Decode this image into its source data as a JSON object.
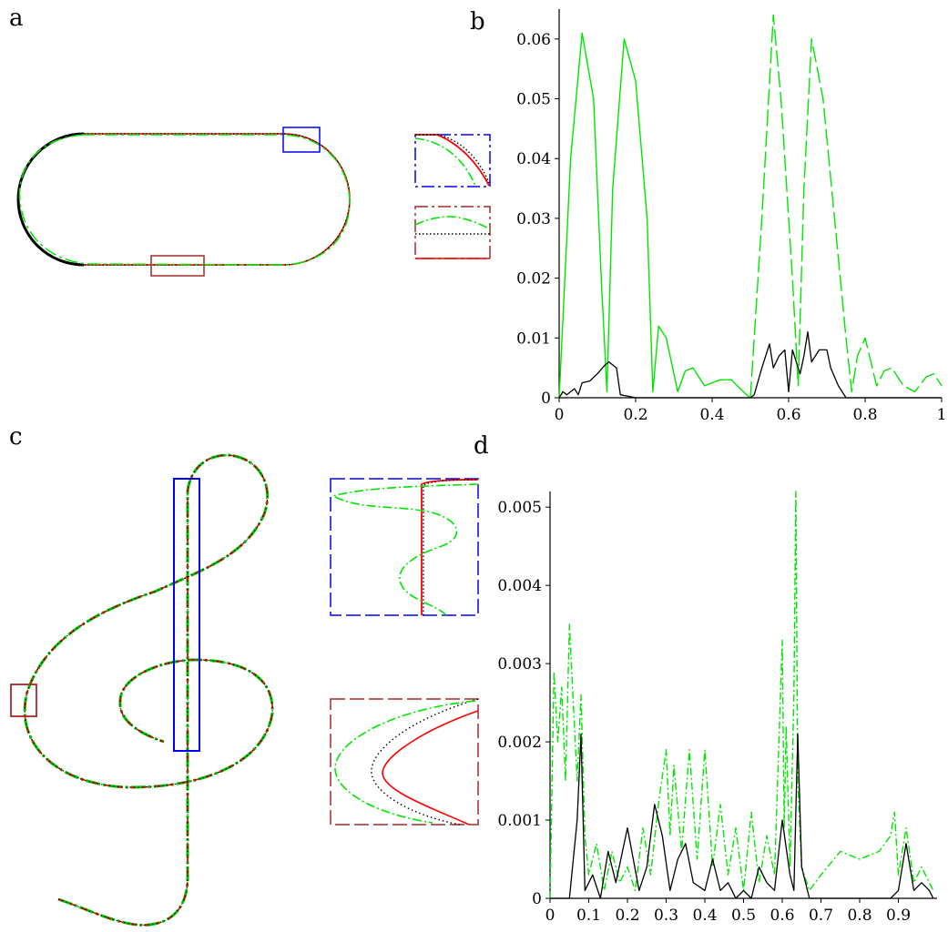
{
  "panels": {
    "a": {
      "label": "a"
    },
    "b": {
      "label": "b"
    },
    "c": {
      "label": "c"
    },
    "d": {
      "label": "d"
    }
  },
  "colors": {
    "exact": "#000000",
    "red": "#ff0000",
    "green": "#00e600",
    "blue": "#0000ff",
    "brown": "#a52a2a"
  },
  "chart_data": [
    {
      "id": "b",
      "type": "line",
      "title": "",
      "xlabel": "",
      "ylabel": "",
      "xlim": [
        0,
        1
      ],
      "ylim": [
        0,
        0.065
      ],
      "xticks": [
        "0",
        "0.2",
        "0.4",
        "0.6",
        "0.8",
        "1"
      ],
      "xtick_values": [
        0,
        0.2,
        0.4,
        0.6,
        0.8,
        1
      ],
      "yticks": [
        "0",
        "0.01",
        "0.02",
        "0.03",
        "0.04",
        "0.05",
        "0.06"
      ],
      "ytick_values": [
        0,
        0.01,
        0.02,
        0.03,
        0.04,
        0.05,
        0.06
      ],
      "series": [
        {
          "style": "green-solid",
          "color": "#00e600",
          "x": [
            0,
            0.03,
            0.06,
            0.09,
            0.11,
            0.125,
            0.14,
            0.17,
            0.2,
            0.23,
            0.245,
            0.26,
            0.28,
            0.31,
            0.33,
            0.35,
            0.38,
            0.42,
            0.45,
            0.49,
            0.5
          ],
          "y": [
            0.0,
            0.04,
            0.061,
            0.05,
            0.02,
            0.001,
            0.035,
            0.06,
            0.053,
            0.03,
            0.001,
            0.012,
            0.01,
            0.001,
            0.0045,
            0.005,
            0.002,
            0.003,
            0.003,
            0.0005,
            0.0
          ]
        },
        {
          "style": "green-dash",
          "color": "#00e600",
          "x": [
            0.5,
            0.53,
            0.56,
            0.58,
            0.61,
            0.625,
            0.64,
            0.66,
            0.69,
            0.72,
            0.75,
            0.765,
            0.78,
            0.8,
            0.83,
            0.85,
            0.87,
            0.9,
            0.93,
            0.96,
            0.98,
            1.0
          ],
          "y": [
            0.0,
            0.03,
            0.064,
            0.05,
            0.02,
            0.002,
            0.035,
            0.06,
            0.05,
            0.03,
            0.01,
            0.001,
            0.007,
            0.01,
            0.002,
            0.0045,
            0.005,
            0.002,
            0.001,
            0.0035,
            0.004,
            0.002
          ]
        },
        {
          "style": "black-solid",
          "color": "#000000",
          "x": [
            0,
            0.01,
            0.02,
            0.03,
            0.04,
            0.05,
            0.06,
            0.08,
            0.1,
            0.12,
            0.13,
            0.15,
            0.16,
            0.2,
            0.4,
            0.5,
            0.51,
            0.53,
            0.55,
            0.56,
            0.575,
            0.59,
            0.6,
            0.61,
            0.63,
            0.64,
            0.65,
            0.66,
            0.67,
            0.68,
            0.7,
            0.71,
            0.73,
            0.75,
            1.0
          ],
          "y": [
            0,
            0.001,
            0.0005,
            0.001,
            0.0015,
            0.0005,
            0.0025,
            0.0028,
            0.004,
            0.0055,
            0.006,
            0.005,
            0.0005,
            0.0,
            0.0,
            0.0,
            0.0005,
            0.005,
            0.009,
            0.005,
            0.007,
            0.008,
            0.001,
            0.008,
            0.004,
            0.007,
            0.011,
            0.006,
            0.007,
            0.008,
            0.008,
            0.005,
            0.002,
            0.0,
            0.0
          ]
        }
      ]
    },
    {
      "id": "d",
      "type": "line",
      "title": "",
      "xlabel": "",
      "ylabel": "",
      "xlim": [
        0,
        1
      ],
      "ylim": [
        0,
        0.0052
      ],
      "xticks": [
        "0",
        "0.1",
        "0.2",
        "0.3",
        "0.4",
        "0.5",
        "0.6",
        "0.7",
        "0.8",
        "0.9"
      ],
      "xtick_values": [
        0,
        0.1,
        0.2,
        0.3,
        0.4,
        0.5,
        0.6,
        0.7,
        0.8,
        0.9
      ],
      "yticks": [
        "0",
        "0.001",
        "0.002",
        "0.003",
        "0.004",
        "0.005"
      ],
      "ytick_values": [
        0,
        0.001,
        0.002,
        0.003,
        0.004,
        0.005
      ],
      "series": [
        {
          "style": "green-dashdot",
          "color": "#00e600",
          "x": [
            0,
            0.01,
            0.02,
            0.03,
            0.04,
            0.05,
            0.06,
            0.07,
            0.08,
            0.09,
            0.1,
            0.12,
            0.14,
            0.16,
            0.18,
            0.2,
            0.22,
            0.24,
            0.26,
            0.28,
            0.3,
            0.31,
            0.32,
            0.34,
            0.36,
            0.38,
            0.4,
            0.42,
            0.44,
            0.46,
            0.48,
            0.5,
            0.52,
            0.54,
            0.56,
            0.58,
            0.6,
            0.605,
            0.61,
            0.62,
            0.63,
            0.635,
            0.64,
            0.65,
            0.67,
            0.7,
            0.75,
            0.8,
            0.85,
            0.88,
            0.89,
            0.9,
            0.92,
            0.94,
            0.96,
            0.98,
            0.99
          ],
          "y": [
            0,
            0.0029,
            0.002,
            0.0027,
            0.0015,
            0.0035,
            0.0025,
            0.0015,
            0.0026,
            0.0008,
            0.0003,
            0.0007,
            0.0001,
            0.0006,
            0.0002,
            0.0004,
            0.0001,
            0.0009,
            0.0003,
            0.0012,
            0.0019,
            0.0008,
            0.0017,
            0.0006,
            0.0019,
            0.0005,
            0.0019,
            0.0004,
            0.0012,
            0.0003,
            0.0009,
            0.0001,
            0.0011,
            0.0002,
            0.0008,
            0.0003,
            0.0033,
            0.0009,
            0.0022,
            0.0004,
            0.0026,
            0.0052,
            0.0015,
            0.0004,
            0.0001,
            0.0003,
            0.0006,
            0.0005,
            0.0006,
            0.0008,
            0.0011,
            0.0003,
            0.0009,
            0.0002,
            0.0004,
            0.0002,
            0.0001
          ]
        },
        {
          "style": "black-solid",
          "color": "#000000",
          "x": [
            0,
            0.05,
            0.07,
            0.08,
            0.09,
            0.11,
            0.13,
            0.15,
            0.17,
            0.2,
            0.23,
            0.25,
            0.27,
            0.29,
            0.31,
            0.33,
            0.35,
            0.37,
            0.4,
            0.42,
            0.44,
            0.46,
            0.48,
            0.5,
            0.52,
            0.54,
            0.56,
            0.58,
            0.6,
            0.62,
            0.63,
            0.64,
            0.65,
            0.67,
            0.88,
            0.9,
            0.92,
            0.94,
            0.96,
            0.98,
            0.99
          ],
          "y": [
            0,
            0.0,
            0.001,
            0.0021,
            0.0001,
            0.0003,
            0.0,
            0.0006,
            0.0002,
            0.0009,
            0.0001,
            0.0004,
            0.0012,
            0.0008,
            0.0001,
            0.0005,
            0.0007,
            0.0002,
            0.0001,
            0.0005,
            0.0001,
            0.0002,
            0.0,
            0.0001,
            0.0,
            0.0004,
            0.0002,
            0.0001,
            0.001,
            0.0003,
            0.0001,
            0.0021,
            0.0004,
            0.0,
            0.0,
            0.0001,
            0.0007,
            0.0001,
            0.0002,
            0.0001,
            0.0
          ]
        }
      ]
    }
  ]
}
